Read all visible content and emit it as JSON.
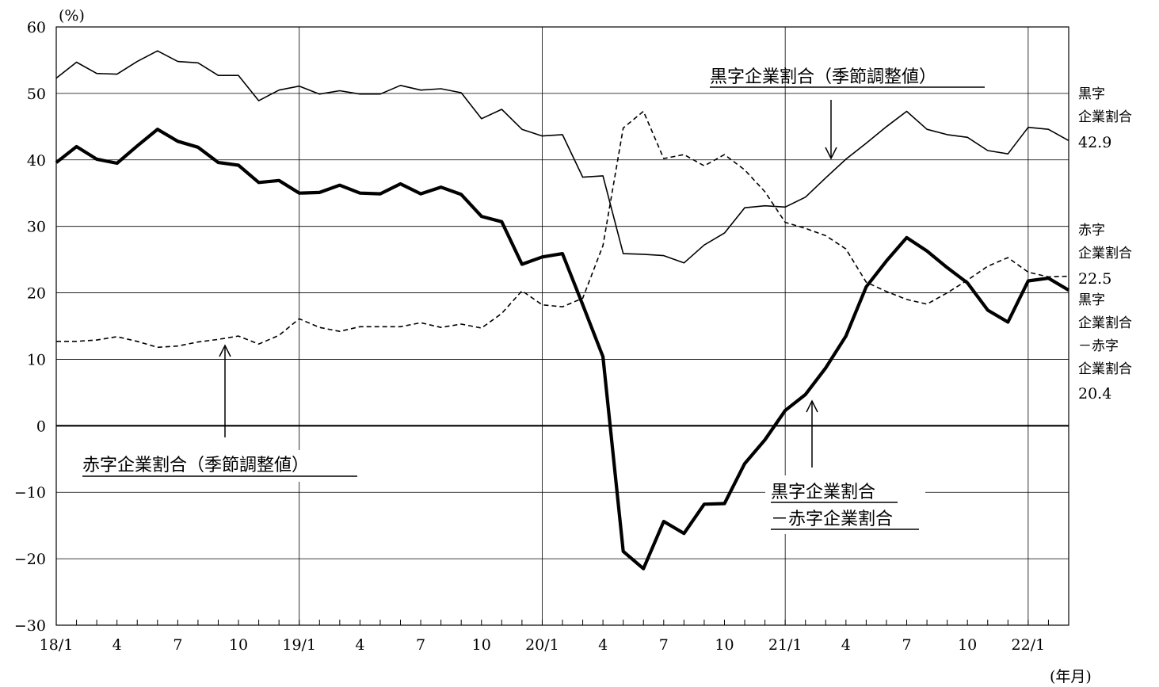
{
  "chart_data": {
    "type": "line",
    "y_unit_label": "(%)",
    "x_unit_label": "(年月)",
    "ylim": [
      -30,
      60
    ],
    "y_ticks": [
      -30,
      -20,
      -10,
      0,
      10,
      20,
      30,
      40,
      50,
      60
    ],
    "x_tick_labels": [
      "18/1",
      "4",
      "7",
      "10",
      "19/1",
      "4",
      "7",
      "10",
      "20/1",
      "4",
      "7",
      "10",
      "21/1",
      "4",
      "7",
      "10",
      "22/1"
    ],
    "x_start": "2018-01",
    "x_end": "2022-03",
    "grid": true,
    "series": [
      {
        "name": "黒字企業割合（季節調整値）",
        "style": "thin-solid",
        "values": [
          52.3,
          54.7,
          53.0,
          52.9,
          54.8,
          56.4,
          54.8,
          54.6,
          52.7,
          52.7,
          48.9,
          50.5,
          51.1,
          49.9,
          50.4,
          49.9,
          49.9,
          51.2,
          50.5,
          50.7,
          50.1,
          46.2,
          47.6,
          44.6,
          43.6,
          43.8,
          37.4,
          37.6,
          25.9,
          25.8,
          25.6,
          24.5,
          27.2,
          29.0,
          32.8,
          33.1,
          32.9,
          34.4,
          37.3,
          40.1,
          42.5,
          45.0,
          47.3,
          44.6,
          43.8,
          43.4,
          41.4,
          40.9,
          44.9,
          44.6,
          42.9
        ]
      },
      {
        "name": "赤字企業割合（季節調整値）",
        "style": "dashed",
        "values": [
          12.7,
          12.7,
          12.9,
          13.4,
          12.7,
          11.8,
          12.0,
          12.6,
          13.0,
          13.5,
          12.3,
          13.6,
          16.1,
          14.8,
          14.2,
          14.9,
          14.9,
          14.9,
          15.5,
          14.8,
          15.3,
          14.7,
          16.9,
          20.3,
          18.2,
          17.9,
          19.2,
          27.1,
          44.8,
          47.3,
          40.2,
          40.8,
          39.1,
          40.8,
          38.5,
          35.2,
          30.6,
          29.7,
          28.6,
          26.6,
          21.6,
          20.2,
          19.0,
          18.3,
          20.0,
          21.9,
          24.0,
          25.3,
          23.1,
          22.4,
          22.5
        ]
      },
      {
        "name": "黒字企業割合－赤字企業割合",
        "style": "thick-solid",
        "values": [
          39.6,
          42.0,
          40.1,
          39.5,
          42.1,
          44.6,
          42.8,
          41.9,
          39.6,
          39.2,
          36.6,
          36.9,
          35.0,
          35.1,
          36.2,
          35.0,
          34.9,
          36.4,
          34.9,
          35.9,
          34.8,
          31.5,
          30.7,
          24.3,
          25.4,
          25.9,
          18.2,
          10.4,
          -18.9,
          -21.5,
          -14.4,
          -16.2,
          -11.8,
          -11.7,
          -5.7,
          -2.1,
          2.3,
          4.7,
          8.7,
          13.5,
          20.9,
          24.8,
          28.3,
          26.3,
          23.8,
          21.5,
          17.4,
          15.6,
          21.8,
          22.2,
          20.4
        ]
      }
    ],
    "annotations": {
      "kuroji": "黒字企業割合（季節調整値）",
      "akaji": "赤字企業割合（季節調整値）",
      "diff_line1": "黒字企業割合",
      "diff_line2": "－赤字企業割合"
    },
    "end_labels": {
      "kuroji": {
        "line1": "黒字",
        "line2": "企業割合",
        "value": "42.9"
      },
      "akaji": {
        "line1": "赤字",
        "line2": "企業割合",
        "value": "22.5"
      },
      "diff": {
        "line1": "黒字",
        "line2": "企業割合",
        "line3": "－赤字",
        "line4": "企業割合",
        "value": "20.4"
      }
    }
  }
}
